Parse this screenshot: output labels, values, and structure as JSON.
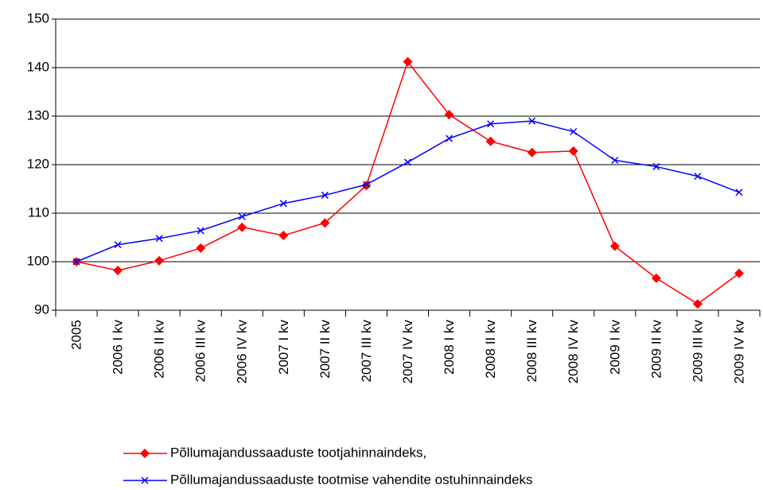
{
  "chart_data": {
    "type": "line",
    "categories": [
      "2005",
      "2006 I kv",
      "2006 II kv",
      "2006 III kv",
      "2006 IV kv",
      "2007 I kv",
      "2007 II kv",
      "2007 III kv",
      "2007 IV kv",
      "2008 I kv",
      "2008 II kv",
      "2008 III kv",
      "2008 IV kv",
      "2009 I kv",
      "2009 II kv",
      "2009 III kv",
      "2009 IV kv"
    ],
    "series": [
      {
        "name": "Põllumajandussaaduste tootjahinnaindeks,",
        "color": "#ff0000",
        "marker": "diamond",
        "values": [
          100,
          98.2,
          100.2,
          102.8,
          107.1,
          105.4,
          108.0,
          115.7,
          141.2,
          130.3,
          124.8,
          122.5,
          122.8,
          103.2,
          96.6,
          91.3,
          97.6
        ]
      },
      {
        "name": "Põllumajandussaaduste tootmise vahendite ostuhinnaindeks",
        "color": "#0000ff",
        "marker": "x",
        "values": [
          100,
          103.5,
          104.8,
          106.4,
          109.3,
          112.0,
          113.7,
          115.9,
          120.5,
          125.4,
          128.4,
          129.0,
          126.8,
          120.9,
          119.6,
          117.6,
          114.3
        ]
      }
    ],
    "ylim": [
      90,
      150
    ],
    "yticks": [
      90,
      100,
      110,
      120,
      130,
      140,
      150
    ],
    "grid": true,
    "legend": "bottom"
  }
}
